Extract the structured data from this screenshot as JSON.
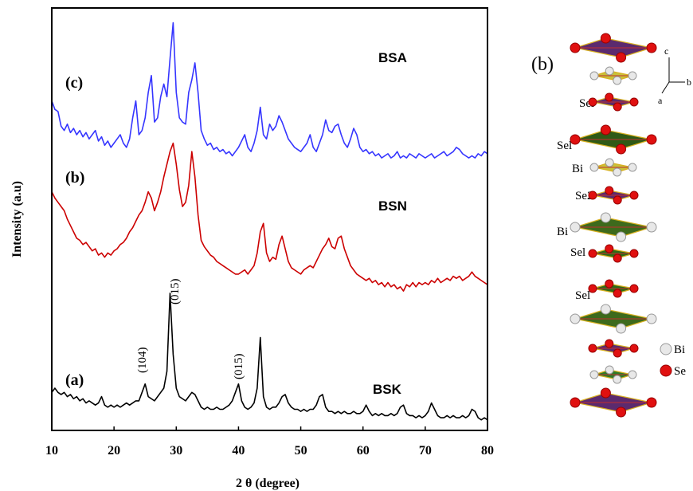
{
  "chart_data": {
    "type": "line",
    "xlabel": "2 θ (degree)",
    "ylabel": "Intensity (a.u)",
    "xlim": [
      10,
      80
    ],
    "xticks": [
      10,
      20,
      30,
      40,
      50,
      60,
      70,
      80
    ],
    "ylim": [
      0,
      100
    ],
    "annotations": [
      "(a)",
      "(b)",
      "(c)",
      "BSK",
      "BSN",
      "BSA",
      "(104)",
      "(015)",
      "(015)"
    ],
    "x": [
      10,
      10.5,
      11,
      11.5,
      12,
      12.5,
      13,
      13.5,
      14,
      14.5,
      15,
      15.5,
      16,
      16.5,
      17,
      17.5,
      18,
      18.5,
      19,
      19.5,
      20,
      20.5,
      21,
      21.5,
      22,
      22.5,
      23,
      23.5,
      24,
      24.5,
      25,
      25.5,
      26,
      26.5,
      27,
      27.5,
      28,
      28.5,
      29,
      29.5,
      30,
      30.5,
      31,
      31.5,
      32,
      32.5,
      33,
      33.5,
      34,
      34.5,
      35,
      35.5,
      36,
      36.5,
      37,
      37.5,
      38,
      38.5,
      39,
      39.5,
      40,
      40.5,
      41,
      41.5,
      42,
      42.5,
      43,
      43.5,
      44,
      44.5,
      45,
      45.5,
      46,
      46.5,
      47,
      47.5,
      48,
      48.5,
      49,
      49.5,
      50,
      50.5,
      51,
      51.5,
      52,
      52.5,
      53,
      53.5,
      54,
      54.5,
      55,
      55.5,
      56,
      56.5,
      57,
      57.5,
      58,
      58.5,
      59,
      59.5,
      60,
      60.5,
      61,
      61.5,
      62,
      62.5,
      63,
      63.5,
      64,
      64.5,
      65,
      65.5,
      66,
      66.5,
      67,
      67.5,
      68,
      68.5,
      69,
      69.5,
      70,
      70.5,
      71,
      71.5,
      72,
      72.5,
      73,
      73.5,
      74,
      74.5,
      75,
      75.5,
      76,
      76.5,
      77,
      77.5,
      78,
      78.5,
      79,
      79.5,
      80
    ],
    "series": [
      {
        "name": "BSA",
        "color": "#3535ff",
        "values": [
          78,
          76,
          75.5,
          72,
          71,
          72.5,
          70.5,
          71.5,
          70,
          71,
          69.5,
          70.5,
          69,
          70,
          71,
          68.5,
          69.5,
          67.5,
          68.5,
          67,
          68,
          69,
          70,
          68,
          67,
          69,
          74,
          78,
          70,
          71,
          74,
          80,
          84,
          73,
          74,
          79,
          82,
          79,
          88,
          96.5,
          80,
          74,
          73,
          72.5,
          80,
          83,
          87,
          80,
          71,
          69,
          67.5,
          68,
          66.5,
          67,
          66,
          66.5,
          65.5,
          66,
          65,
          66,
          67,
          68.5,
          70,
          67,
          66,
          68,
          71,
          76.5,
          70,
          69,
          72.5,
          71,
          72,
          74.5,
          73,
          71,
          69,
          68,
          67,
          66.5,
          66,
          67,
          68,
          70,
          67,
          66,
          68,
          70,
          73.5,
          71,
          70.5,
          72,
          72.5,
          70,
          68,
          67,
          69,
          71.5,
          70,
          67,
          66,
          66.5,
          65.5,
          66,
          65,
          65.5,
          64.5,
          65,
          65.5,
          64.5,
          65,
          66,
          64.5,
          65,
          64.5,
          65.5,
          65,
          64.5,
          65.5,
          65,
          64.5,
          65,
          65.5,
          64.5,
          65,
          65.5,
          66,
          65,
          65.5,
          66,
          67,
          66.5,
          65.5,
          65,
          64.5,
          65,
          64.5,
          65.5,
          65,
          66,
          65.5
        ]
      },
      {
        "name": "BSN",
        "color": "#cc0000",
        "values": [
          56.5,
          55,
          54,
          53,
          52,
          50,
          48.5,
          47,
          45.5,
          45,
          44,
          44.5,
          43.5,
          42.5,
          43,
          41.5,
          42,
          41,
          42,
          41.5,
          42.5,
          43,
          44,
          44.5,
          45.5,
          47,
          48,
          49.5,
          51,
          52,
          54,
          56.5,
          55,
          52,
          54,
          56.5,
          60,
          63,
          66,
          68,
          63,
          57,
          53,
          54,
          58,
          66,
          60,
          51,
          45,
          43.5,
          42.5,
          41.5,
          41,
          40,
          39.5,
          39,
          38.5,
          38,
          37.5,
          37,
          37,
          37.5,
          38,
          37,
          38,
          39,
          42,
          47,
          49,
          42,
          40,
          41,
          40.5,
          44,
          46,
          43,
          40,
          38.5,
          38,
          37.5,
          37,
          38,
          38.5,
          39,
          38.5,
          40,
          41.5,
          43,
          44,
          45.5,
          43.5,
          43,
          45.5,
          46,
          43,
          41,
          39,
          38,
          37,
          36.5,
          36,
          35.5,
          36,
          35,
          35.5,
          34.5,
          35,
          34,
          35,
          34,
          34.5,
          33.5,
          34,
          33,
          34.5,
          34,
          35,
          34,
          35,
          34.5,
          35,
          34.5,
          35.5,
          35,
          36,
          35,
          35.5,
          36,
          35.5,
          36.5,
          36,
          36.5,
          35.5,
          36,
          36.5,
          37.5,
          36.5,
          36,
          35.5,
          35,
          34.5
        ]
      },
      {
        "name": "BSK",
        "color": "#000000",
        "values": [
          9,
          10,
          9,
          8.5,
          9,
          8,
          8.5,
          7.5,
          8,
          7,
          7.5,
          6.5,
          7,
          6.5,
          6,
          6.5,
          8,
          6,
          5.5,
          6,
          5.5,
          6,
          5.5,
          6,
          6.5,
          6,
          6.5,
          7,
          7,
          9,
          11,
          8,
          7.5,
          7,
          8,
          9,
          10,
          14,
          32.5,
          18,
          10,
          8,
          7.5,
          7,
          8,
          9,
          8.5,
          7,
          5.5,
          5,
          5.5,
          5,
          5,
          5.5,
          5,
          5,
          5.5,
          6,
          7,
          9,
          11,
          7,
          5.5,
          5,
          5.5,
          6.5,
          10,
          22,
          8,
          5.5,
          5,
          5.5,
          5.5,
          6.5,
          8,
          8.5,
          6.5,
          5.5,
          5,
          5,
          4.5,
          5,
          4.5,
          5,
          5,
          6,
          8,
          8.5,
          5.5,
          4.5,
          4.5,
          4,
          4.5,
          4,
          4.5,
          4,
          4,
          4.5,
          4,
          4,
          4.5,
          6,
          4.5,
          3.5,
          4,
          3.5,
          4,
          3.5,
          3.5,
          4,
          3.5,
          4,
          5.5,
          6,
          4,
          3.5,
          3.5,
          3,
          3.5,
          3,
          3.5,
          4.5,
          6.5,
          5,
          3.5,
          3,
          3,
          3.5,
          3,
          3.5,
          3,
          3,
          3.5,
          3,
          3.5,
          5,
          4.5,
          3,
          2.5,
          3,
          2.5
        ]
      }
    ]
  },
  "structure": {
    "panel_label": "(b)",
    "axes": [
      "c",
      "b",
      "a"
    ],
    "atom_labels": [
      "Sel",
      "Sel",
      "Bi",
      "Se2",
      "Bi",
      "Sel",
      "Sel"
    ],
    "legend": [
      "Bi",
      "Se"
    ]
  }
}
